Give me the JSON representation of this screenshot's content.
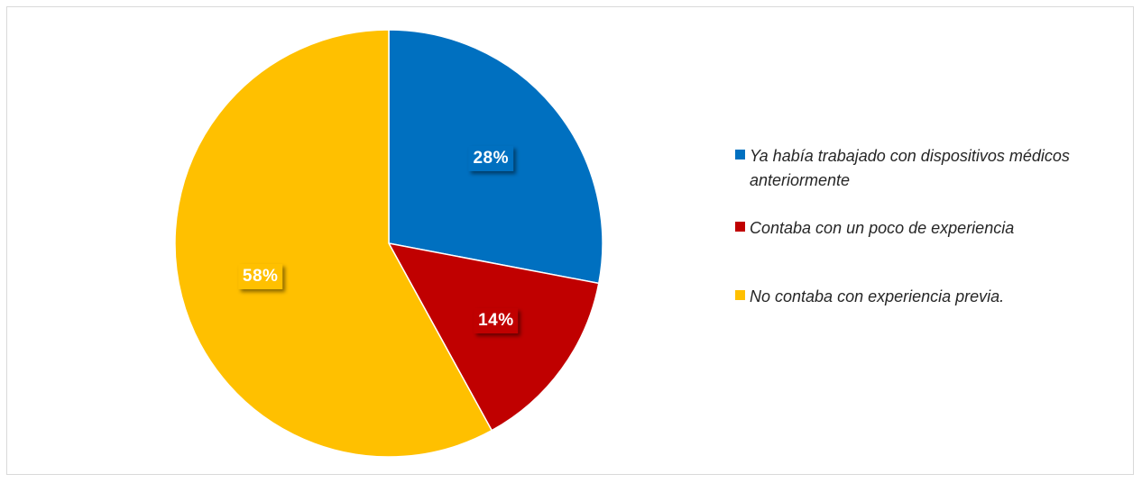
{
  "chart_data": {
    "type": "pie",
    "slices": [
      {
        "label": "Ya había trabajado con dispositivos médicos anteriormente",
        "value": 28,
        "value_label": "28%",
        "color": "#0070C0"
      },
      {
        "label": "Contaba con un poco de experiencia",
        "value": 14,
        "value_label": "14%",
        "color": "#C00000"
      },
      {
        "label": "No contaba con experiencia previa.",
        "value": 58,
        "value_label": "58%",
        "color": "#FFC000"
      }
    ],
    "title": "",
    "start_angle": "12 o'clock, clockwise",
    "legend_position": "right"
  }
}
